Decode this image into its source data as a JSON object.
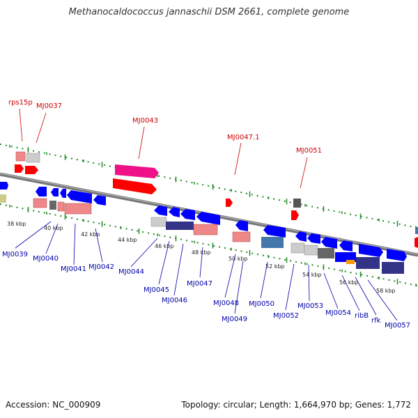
{
  "header": {
    "title": "Methanocaldococcus jannaschii DSM 2661, complete genome"
  },
  "footer": {
    "accession": "Accession: NC_000909",
    "summary": "Topology: circular; Length: 1,664,970 bp; Genes: 1,772"
  },
  "colors": {
    "forward_label": "#cc0000",
    "reverse_label": "#0000aa",
    "backbone": "#888888",
    "tick": "#228822",
    "cds": "#0000ff",
    "rrna": "#ff0000",
    "trna_pink": "#ee1188",
    "salmon": "#ee8888",
    "gray": "#999999",
    "navy": "#333388",
    "steel": "#4477aa",
    "orange": "#ff9900"
  },
  "scale": {
    "labels": [
      {
        "kbp": 38,
        "text": "38 kbp"
      },
      {
        "kbp": 40,
        "text": "40 kbp"
      },
      {
        "kbp": 42,
        "text": "42 kbp"
      },
      {
        "kbp": 44,
        "text": "44 kbp"
      },
      {
        "kbp": 46,
        "text": "46 kbp"
      },
      {
        "kbp": 48,
        "text": "48 kbp"
      },
      {
        "kbp": 50,
        "text": "50 kbp"
      },
      {
        "kbp": 52,
        "text": "52 kbp"
      },
      {
        "kbp": 54,
        "text": "54 kbp"
      },
      {
        "kbp": 56,
        "text": "56 kbp"
      },
      {
        "kbp": 58,
        "text": "58 kbp"
      }
    ]
  },
  "forward_labels": [
    {
      "id": "rps15p",
      "text": "rps15p"
    },
    {
      "id": "mj0037",
      "text": "MJ0037"
    },
    {
      "id": "mj0043",
      "text": "MJ0043"
    },
    {
      "id": "mj0047-1",
      "text": "MJ0047.1"
    },
    {
      "id": "mj0051",
      "text": "MJ0051"
    }
  ],
  "reverse_labels": [
    {
      "id": "mj0039",
      "text": "MJ0039"
    },
    {
      "id": "mj0040",
      "text": "MJ0040"
    },
    {
      "id": "mj0041",
      "text": "MJ0041"
    },
    {
      "id": "mj0042",
      "text": "MJ0042"
    },
    {
      "id": "mj0044",
      "text": "MJ0044"
    },
    {
      "id": "mj0045",
      "text": "MJ0045"
    },
    {
      "id": "mj0046",
      "text": "MJ0046"
    },
    {
      "id": "mj0047",
      "text": "MJ0047"
    },
    {
      "id": "mj0048",
      "text": "MJ0048"
    },
    {
      "id": "mj0049",
      "text": "MJ0049"
    },
    {
      "id": "mj0050",
      "text": "MJ0050"
    },
    {
      "id": "mj0052",
      "text": "MJ0052"
    },
    {
      "id": "mj0053",
      "text": "MJ0053"
    },
    {
      "id": "mj0054",
      "text": "MJ0054"
    },
    {
      "id": "ribb",
      "text": "ribB"
    },
    {
      "id": "rfk",
      "text": "rfk"
    },
    {
      "id": "mj0057",
      "text": "MJ0057"
    }
  ]
}
